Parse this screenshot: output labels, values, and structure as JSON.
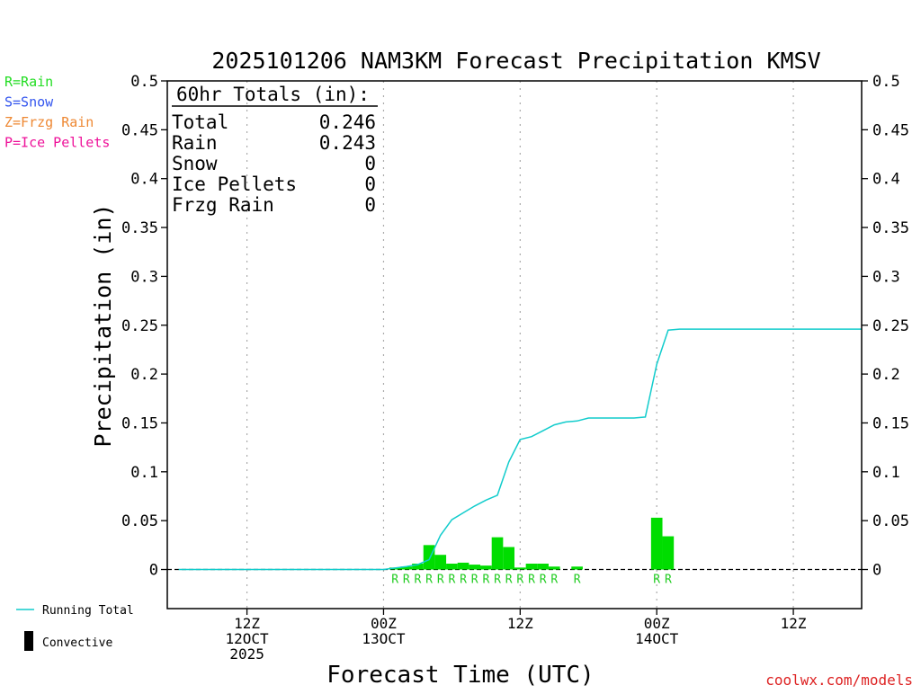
{
  "chart_data": {
    "type": "bar",
    "title": "2025101206 NAM3KM Forecast Precipitation KMSV",
    "xlabel": "Forecast Time (UTC)",
    "ylabel": "Precipitation (in)",
    "ylim": [
      -0.04,
      0.5
    ],
    "yticks": [
      0,
      0.05,
      0.1,
      0.15,
      0.2,
      0.25,
      0.3,
      0.35,
      0.4,
      0.45,
      0.5
    ],
    "ytick_labels": [
      "0",
      "0.05",
      "0.1",
      "0.15",
      "0.2",
      "0.25",
      "0.3",
      "0.35",
      "0.4",
      "0.45",
      "0.5"
    ],
    "x_unit": "forecast hour",
    "xlim": [
      -1,
      60
    ],
    "grid": "vertical dotted at 12-hour ticks",
    "x_ticks": [
      {
        "hour": 6,
        "lines": [
          "12Z",
          "12OCT",
          "2025"
        ]
      },
      {
        "hour": 18,
        "lines": [
          "00Z",
          "13OCT"
        ]
      },
      {
        "hour": 30,
        "lines": [
          "12Z"
        ]
      },
      {
        "hour": 42,
        "lines": [
          "00Z",
          "14OCT"
        ]
      },
      {
        "hour": 54,
        "lines": [
          "12Z"
        ]
      }
    ],
    "bars": [
      {
        "hour": 19,
        "value": 0.002,
        "type": "R"
      },
      {
        "hour": 20,
        "value": 0.003,
        "type": "R"
      },
      {
        "hour": 21,
        "value": 0.006,
        "type": "R"
      },
      {
        "hour": 22,
        "value": 0.025,
        "type": "R"
      },
      {
        "hour": 23,
        "value": 0.015,
        "type": "R"
      },
      {
        "hour": 24,
        "value": 0.006,
        "type": "R"
      },
      {
        "hour": 25,
        "value": 0.007,
        "type": "R"
      },
      {
        "hour": 26,
        "value": 0.005,
        "type": "R"
      },
      {
        "hour": 27,
        "value": 0.004,
        "type": "R"
      },
      {
        "hour": 28,
        "value": 0.033,
        "type": "R"
      },
      {
        "hour": 29,
        "value": 0.023,
        "type": "R"
      },
      {
        "hour": 30,
        "value": 0.002,
        "type": "R"
      },
      {
        "hour": 31,
        "value": 0.006,
        "type": "R"
      },
      {
        "hour": 32,
        "value": 0.006,
        "type": "R"
      },
      {
        "hour": 33,
        "value": 0.003,
        "type": "R"
      },
      {
        "hour": 35,
        "value": 0.003,
        "type": "R"
      },
      {
        "hour": 42,
        "value": 0.053,
        "type": "R"
      },
      {
        "hour": 43,
        "value": 0.034,
        "type": "R"
      }
    ],
    "series": [
      {
        "name": "Running Total",
        "x": [
          0,
          18,
          20,
          21,
          22,
          23,
          24,
          25,
          26,
          27,
          28,
          29,
          30,
          31,
          32,
          33,
          34,
          35,
          36,
          37,
          38,
          39,
          40,
          41,
          42,
          43,
          44,
          46,
          48,
          50,
          52,
          54,
          56,
          58,
          60
        ],
        "values": [
          0,
          0,
          0.003,
          0.005,
          0.01,
          0.035,
          0.051,
          0.058,
          0.065,
          0.071,
          0.076,
          0.11,
          0.133,
          0.136,
          0.142,
          0.148,
          0.151,
          0.152,
          0.155,
          0.155,
          0.155,
          0.155,
          0.155,
          0.156,
          0.21,
          0.245,
          0.246,
          0.246,
          0.246,
          0.246,
          0.246,
          0.246,
          0.246,
          0.246,
          0.246
        ]
      }
    ],
    "totals_box": {
      "heading": "60hr Totals (in):",
      "rows": [
        {
          "label": "Total",
          "value": "0.246"
        },
        {
          "label": "Rain",
          "value": "0.243"
        },
        {
          "label": "Snow",
          "value": "0"
        },
        {
          "label": "Ice Pellets",
          "value": "0"
        },
        {
          "label": "Frzg Rain",
          "value": "0"
        }
      ]
    },
    "type_legend": [
      {
        "text": "R=Rain",
        "color": "#22dd22"
      },
      {
        "text": "S=Snow",
        "color": "#3355ee"
      },
      {
        "text": "Z=Frzg Rain",
        "color": "#ee8833"
      },
      {
        "text": "P=Ice Pellets",
        "color": "#ee1199"
      }
    ],
    "bottom_legend": [
      {
        "text": "Running Total",
        "kind": "line",
        "color": "#11cccc"
      },
      {
        "text": "Convective",
        "kind": "bar",
        "color": "#000000"
      }
    ],
    "credit": "coolwx.com/models"
  },
  "colors": {
    "bar": "#00dd00",
    "running_total": "#11cccc",
    "rain_label": "#22cc22",
    "credit": "#dd2222"
  }
}
